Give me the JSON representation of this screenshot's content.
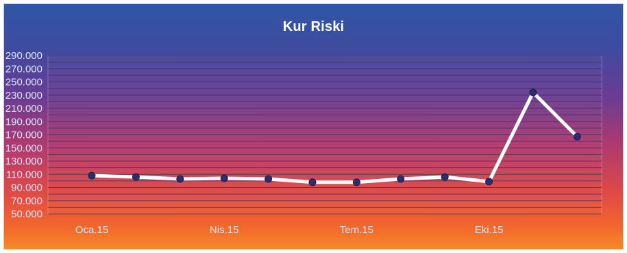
{
  "chart_data": {
    "type": "line",
    "title": "Kur Riski",
    "xlabel": "",
    "ylabel": "",
    "ylim": [
      50000,
      290000
    ],
    "y_ticks": [
      "50.000",
      "70.000",
      "90.000",
      "110.000",
      "130.000",
      "150.000",
      "170.000",
      "190.000",
      "210.000",
      "230.000",
      "250.000",
      "270.000",
      "290.000"
    ],
    "x_tick_labels": [
      "Oca.15",
      "Nis.15",
      "Tem.15",
      "Eki.15"
    ],
    "x_tick_label_indices": [
      0,
      3,
      6,
      9
    ],
    "grid": true,
    "legend": "none",
    "series": [
      {
        "color": "#ffffff",
        "marker_color": "#2b2e6b",
        "values": [
          108000,
          106000,
          103000,
          104000,
          103000,
          98000,
          98000,
          103000,
          106000,
          99000,
          234000,
          167000
        ]
      }
    ]
  },
  "colors": {
    "gradient_top": "#2f56a6",
    "gradient_bottom": "#f58a2a",
    "gridline": "#3a2a55",
    "axis_text": "#d9e6ff",
    "title_text": "#ffffff"
  }
}
